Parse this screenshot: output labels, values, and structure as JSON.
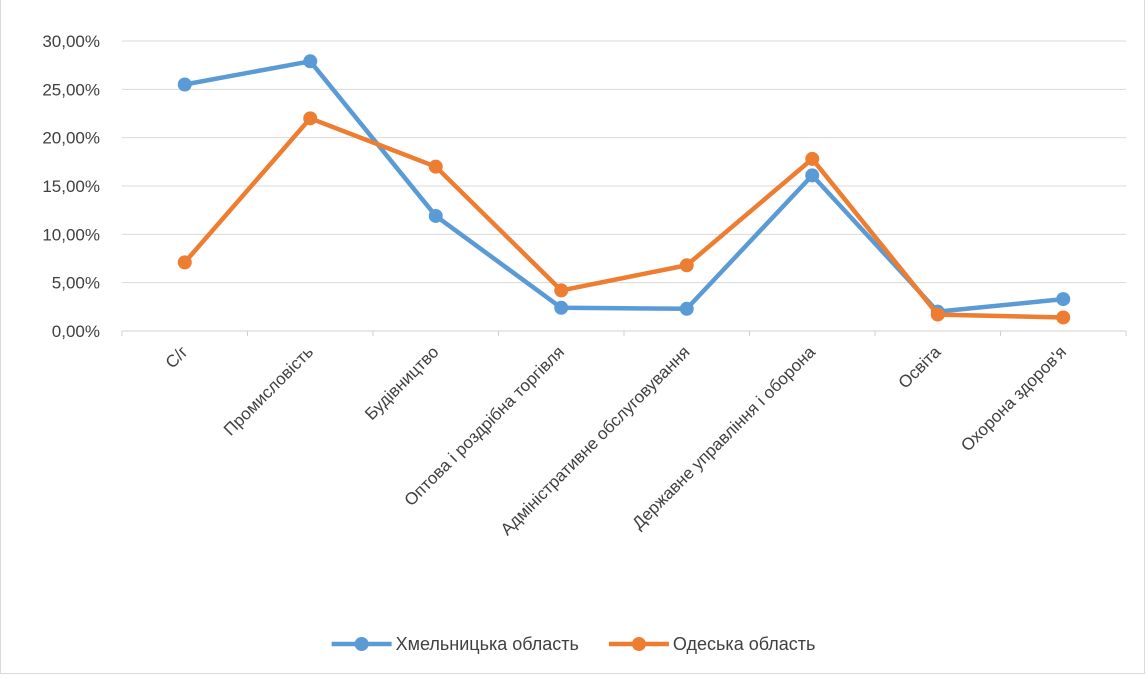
{
  "chart_data": {
    "type": "line",
    "categories": [
      "С/г",
      "Промисловість",
      "Будівництво",
      "Оптова і роздрібна торгівля",
      "Адміністративне обслуговування",
      "Державне управління і оборона",
      "Освіта",
      "Охорона здоров'я"
    ],
    "series": [
      {
        "name": "Хмельницька область",
        "color": "#5b9bd5",
        "values": [
          0.255,
          0.279,
          0.119,
          0.024,
          0.023,
          0.161,
          0.02,
          0.033
        ]
      },
      {
        "name": "Одеська область",
        "color": "#ed7d31",
        "values": [
          0.071,
          0.22,
          0.17,
          0.042,
          0.068,
          0.178,
          0.017,
          0.014
        ]
      }
    ],
    "ylim": [
      0,
      0.3
    ],
    "yticks": [
      0,
      0.05,
      0.1,
      0.15,
      0.2,
      0.25,
      0.3
    ],
    "ytick_labels": [
      "0,00%",
      "5,00%",
      "10,00%",
      "15,00%",
      "20,00%",
      "25,00%",
      "30,00%"
    ],
    "grid": true,
    "legend_position": "bottom",
    "title": "",
    "xlabel": "",
    "ylabel": ""
  }
}
